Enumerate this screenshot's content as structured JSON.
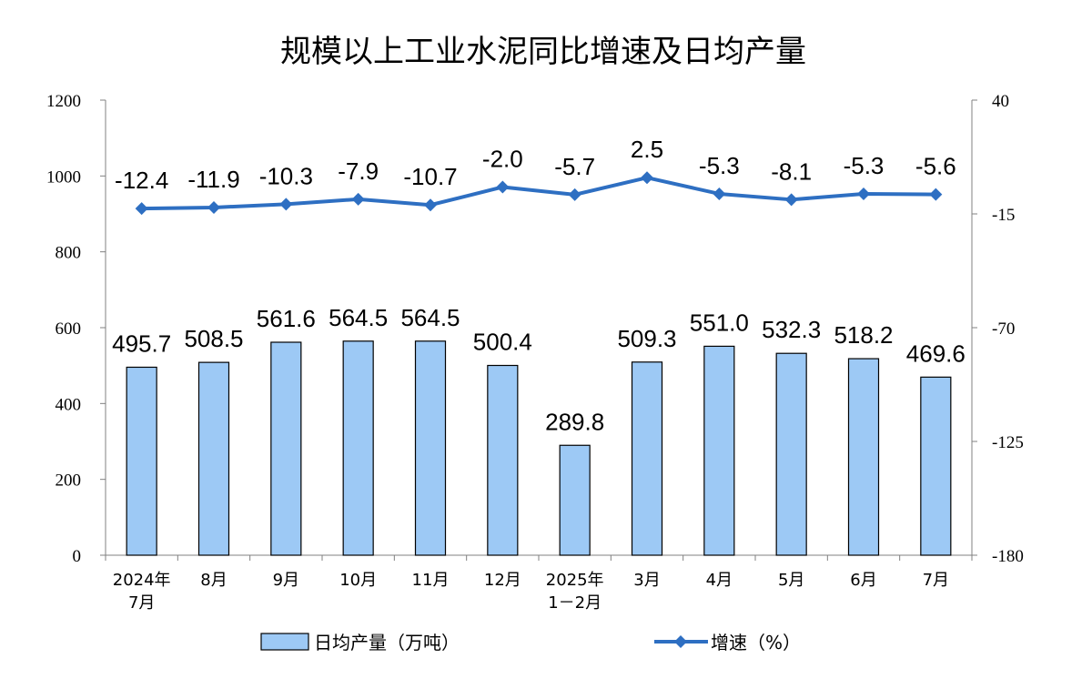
{
  "chart_data": {
    "type": "bar",
    "title": "规模以上工业水泥同比增速及日均产量",
    "categories": [
      [
        "2024年",
        "7月"
      ],
      [
        "8月"
      ],
      [
        "9月"
      ],
      [
        "10月"
      ],
      [
        "11月"
      ],
      [
        "12月"
      ],
      [
        "2025年",
        "1－2月"
      ],
      [
        "3月"
      ],
      [
        "4月"
      ],
      [
        "5月"
      ],
      [
        "6月"
      ],
      [
        "7月"
      ]
    ],
    "series": [
      {
        "name": "日均产量（万吨）",
        "type": "bar",
        "axis": "left",
        "values": [
          495.7,
          508.5,
          561.6,
          564.5,
          564.5,
          500.4,
          289.8,
          509.3,
          551.0,
          532.3,
          518.2,
          469.6
        ],
        "labels": [
          "495.7",
          "508.5",
          "561.6",
          "564.5",
          "564.5",
          "500.4",
          "289.8",
          "509.3",
          "551.0",
          "532.3",
          "518.2",
          "469.6"
        ]
      },
      {
        "name": "增速（%）",
        "type": "line",
        "axis": "right",
        "values": [
          -12.4,
          -11.9,
          -10.3,
          -7.9,
          -10.7,
          -2.0,
          -5.7,
          2.5,
          -5.3,
          -8.1,
          -5.3,
          -5.6
        ],
        "labels": [
          "-12.4",
          "-11.9",
          "-10.3",
          "-7.9",
          "-10.7",
          "-2.0",
          "-5.7",
          "2.5",
          "-5.3",
          "-8.1",
          "-5.3",
          "-5.6"
        ]
      }
    ],
    "y_left": {
      "min": 0,
      "max": 1200,
      "ticks": [
        "0",
        "200",
        "400",
        "600",
        "800",
        "1000",
        "1200"
      ]
    },
    "y_right": {
      "min": -180,
      "max": 40,
      "ticks": [
        "-180",
        "-125",
        "-70",
        "-15",
        "40"
      ]
    },
    "grid": false,
    "legend": "bottom"
  },
  "colors": {
    "bar_fill": "#9DC9F5",
    "bar_stroke": "#000000",
    "line": "#2E6FC2",
    "axis": "#808080"
  }
}
